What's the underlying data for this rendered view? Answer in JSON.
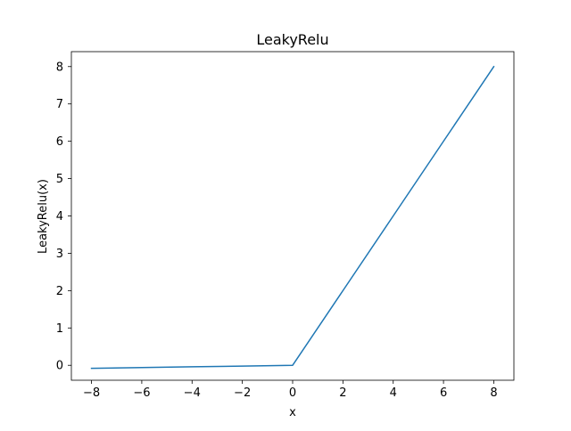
{
  "chart_data": {
    "type": "line",
    "title": "LeakyRelu",
    "xlabel": "x",
    "ylabel": "LeakyRelu(x)",
    "xlim": [
      -8.8,
      8.8
    ],
    "ylim": [
      -0.4,
      8.4
    ],
    "xticks": [
      -8,
      -6,
      -4,
      -2,
      0,
      2,
      4,
      6,
      8
    ],
    "xtick_labels": [
      "−8",
      "−6",
      "−4",
      "−2",
      "0",
      "2",
      "4",
      "6",
      "8"
    ],
    "yticks": [
      0,
      1,
      2,
      3,
      4,
      5,
      6,
      7,
      8
    ],
    "ytick_labels": [
      "0",
      "1",
      "2",
      "3",
      "4",
      "5",
      "6",
      "7",
      "8"
    ],
    "grid": false,
    "series": [
      {
        "color": "#1f77b4",
        "x": [
          -8,
          -6,
          -4,
          -2,
          0,
          2,
          4,
          6,
          8
        ],
        "y": [
          -0.08,
          -0.06,
          -0.04,
          -0.02,
          0,
          2,
          4,
          6,
          8
        ]
      }
    ]
  }
}
